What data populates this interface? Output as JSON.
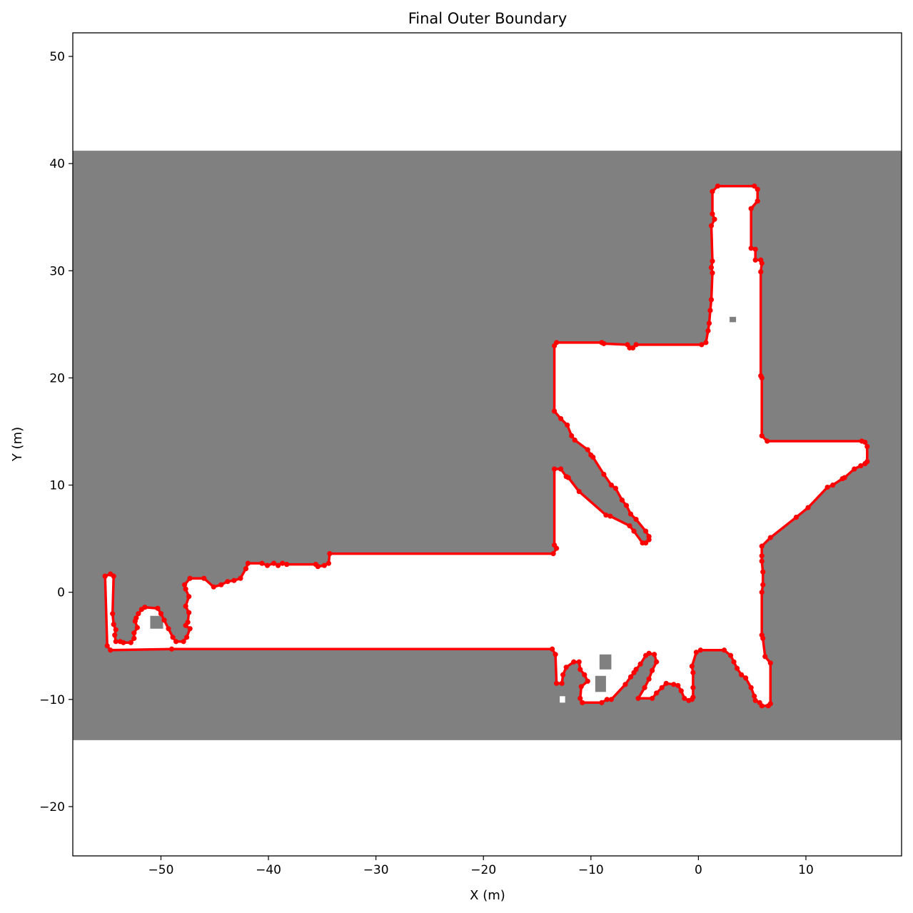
{
  "chart_data": {
    "type": "line",
    "title": "Final Outer Boundary",
    "xlabel": "X (m)",
    "ylabel": "Y (m)",
    "xlim": [
      -58.2,
      18.9
    ],
    "ylim": [
      -24.6,
      52.2
    ],
    "xticks": [
      -50,
      -40,
      -30,
      -20,
      -10,
      0,
      10
    ],
    "yticks": [
      -20,
      -10,
      0,
      10,
      20,
      30,
      40,
      50
    ],
    "xtick_labels": [
      "−50",
      "−40",
      "−30",
      "−20",
      "−10",
      "0",
      "10"
    ],
    "ytick_labels": [
      "−20",
      "−10",
      "0",
      "10",
      "20",
      "30",
      "40",
      "50"
    ],
    "grid": false,
    "background_map": {
      "unknown_color": "#808080",
      "free_color": "#ffffff",
      "unknown_band_y": [
        -13.8,
        41.2
      ],
      "obstacles": [
        {
          "x": [
            -51.0,
            -49.8
          ],
          "y": [
            -3.4,
            -2.2
          ]
        },
        {
          "x": [
            -9.2,
            -8.1
          ],
          "y": [
            -7.2,
            -5.8
          ]
        },
        {
          "x": [
            -9.6,
            -8.6
          ],
          "y": [
            -9.3,
            -7.8
          ]
        },
        {
          "x": [
            2.9,
            3.5
          ],
          "y": [
            25.2,
            25.7
          ]
        }
      ],
      "free_spots": [
        {
          "x": [
            -12.9,
            -12.4
          ],
          "y": [
            -10.3,
            -9.7
          ]
        }
      ]
    },
    "series": [
      {
        "color": "#ff0000",
        "points": [
          [
            -55.2,
            1.5
          ],
          [
            -55.0,
            -5.0
          ],
          [
            -54.7,
            -5.4
          ],
          [
            -49.0,
            -5.3
          ],
          [
            -13.6,
            -5.3
          ],
          [
            -13.3,
            -5.8
          ],
          [
            -13.2,
            -8.5
          ],
          [
            -12.7,
            -8.5
          ],
          [
            -12.6,
            -7.7
          ],
          [
            -12.3,
            -7.0
          ],
          [
            -11.6,
            -6.5
          ],
          [
            -11.1,
            -6.5
          ],
          [
            -11.0,
            -7.2
          ],
          [
            -10.6,
            -7.7
          ],
          [
            -10.3,
            -8.3
          ],
          [
            -10.9,
            -8.8
          ],
          [
            -11.0,
            -9.9
          ],
          [
            -10.8,
            -10.3
          ],
          [
            -9.0,
            -10.3
          ],
          [
            -8.5,
            -10.0
          ],
          [
            -8.1,
            -10.0
          ],
          [
            -6.8,
            -8.6
          ],
          [
            -6.3,
            -7.9
          ],
          [
            -6.0,
            -7.5
          ],
          [
            -5.8,
            -7.2
          ],
          [
            -5.4,
            -6.7
          ],
          [
            -4.9,
            -5.9
          ],
          [
            -4.6,
            -5.7
          ],
          [
            -4.1,
            -5.8
          ],
          [
            -3.9,
            -6.5
          ],
          [
            -4.3,
            -7.3
          ],
          [
            -4.6,
            -8.1
          ],
          [
            -5.0,
            -8.9
          ],
          [
            -5.6,
            -9.9
          ],
          [
            -4.3,
            -9.9
          ],
          [
            -3.9,
            -9.4
          ],
          [
            -3.4,
            -8.9
          ],
          [
            -3.0,
            -8.5
          ],
          [
            -2.3,
            -8.6
          ],
          [
            -1.9,
            -8.7
          ],
          [
            -1.6,
            -9.2
          ],
          [
            -1.3,
            -9.9
          ],
          [
            -0.9,
            -10.1
          ],
          [
            -0.6,
            -10.0
          ],
          [
            -0.5,
            -9.8
          ],
          [
            -0.5,
            -8.9
          ],
          [
            -0.5,
            -7.5
          ],
          [
            -0.6,
            -6.9
          ],
          [
            -0.2,
            -5.6
          ],
          [
            0.2,
            -5.4
          ],
          [
            2.4,
            -5.4
          ],
          [
            3.0,
            -5.9
          ],
          [
            3.3,
            -6.5
          ],
          [
            3.6,
            -7.1
          ],
          [
            4.0,
            -7.7
          ],
          [
            4.4,
            -8.0
          ],
          [
            4.9,
            -8.9
          ],
          [
            5.2,
            -9.7
          ],
          [
            5.3,
            -10.1
          ],
          [
            5.7,
            -10.3
          ],
          [
            5.9,
            -10.6
          ],
          [
            6.5,
            -10.6
          ],
          [
            6.7,
            -10.4
          ],
          [
            6.7,
            -6.6
          ],
          [
            6.2,
            -6.0
          ],
          [
            6.0,
            -4.3
          ],
          [
            5.9,
            -4.0
          ],
          [
            5.9,
            0.0
          ],
          [
            6.0,
            0.7
          ],
          [
            6.0,
            1.9
          ],
          [
            5.9,
            2.9
          ],
          [
            5.9,
            3.4
          ],
          [
            5.9,
            4.3
          ],
          [
            6.7,
            5.1
          ],
          [
            9.1,
            7.0
          ],
          [
            10.2,
            7.9
          ],
          [
            12.0,
            9.8
          ],
          [
            12.5,
            10.0
          ],
          [
            13.4,
            10.6
          ],
          [
            13.6,
            10.7
          ],
          [
            14.5,
            11.5
          ],
          [
            15.1,
            11.8
          ],
          [
            15.5,
            12.0
          ],
          [
            15.7,
            12.2
          ],
          [
            15.7,
            13.6
          ],
          [
            15.5,
            14.0
          ],
          [
            15.2,
            14.1
          ],
          [
            6.4,
            14.1
          ],
          [
            5.9,
            14.6
          ],
          [
            5.9,
            20.0
          ],
          [
            5.8,
            20.2
          ],
          [
            5.8,
            29.9
          ],
          [
            5.9,
            30.7
          ],
          [
            5.8,
            31.0
          ],
          [
            5.3,
            31.0
          ],
          [
            5.3,
            32.0
          ],
          [
            4.9,
            32.1
          ],
          [
            4.9,
            35.8
          ],
          [
            5.5,
            36.5
          ],
          [
            5.5,
            37.6
          ],
          [
            5.2,
            37.9
          ],
          [
            1.8,
            37.9
          ],
          [
            1.3,
            37.4
          ],
          [
            1.3,
            35.3
          ],
          [
            1.5,
            34.8
          ],
          [
            1.2,
            34.2
          ],
          [
            1.3,
            30.9
          ],
          [
            1.2,
            30.3
          ],
          [
            1.3,
            29.8
          ],
          [
            1.2,
            27.3
          ],
          [
            1.1,
            26.3
          ],
          [
            1.0,
            25.1
          ],
          [
            0.9,
            24.4
          ],
          [
            0.7,
            23.3
          ],
          [
            0.3,
            23.1
          ],
          [
            -5.8,
            23.1
          ],
          [
            -6.1,
            22.8
          ],
          [
            -6.4,
            22.8
          ],
          [
            -6.6,
            23.1
          ],
          [
            -8.8,
            23.2
          ],
          [
            -9.0,
            23.3
          ],
          [
            -13.2,
            23.3
          ],
          [
            -13.4,
            23.0
          ],
          [
            -13.4,
            16.9
          ],
          [
            -12.8,
            16.2
          ],
          [
            -12.2,
            15.6
          ],
          [
            -11.8,
            14.6
          ],
          [
            -11.5,
            14.2
          ],
          [
            -10.3,
            13.3
          ],
          [
            -10.0,
            12.8
          ],
          [
            -9.8,
            12.6
          ],
          [
            -8.8,
            11.0
          ],
          [
            -8.1,
            10.0
          ],
          [
            -7.7,
            9.7
          ],
          [
            -7.1,
            8.6
          ],
          [
            -6.7,
            8.1
          ],
          [
            -6.3,
            7.3
          ],
          [
            -5.8,
            6.8
          ],
          [
            -4.9,
            5.7
          ],
          [
            -4.6,
            5.2
          ],
          [
            -4.6,
            4.9
          ],
          [
            -4.9,
            4.6
          ],
          [
            -5.2,
            4.6
          ],
          [
            -6.0,
            5.7
          ],
          [
            -6.4,
            6.2
          ],
          [
            -8.2,
            7.1
          ],
          [
            -8.6,
            7.2
          ],
          [
            -11.1,
            9.4
          ],
          [
            -12.1,
            10.7
          ],
          [
            -12.3,
            10.8
          ],
          [
            -12.8,
            11.5
          ],
          [
            -13.4,
            11.5
          ],
          [
            -13.4,
            4.4
          ],
          [
            -13.2,
            4.1
          ],
          [
            -13.5,
            3.6
          ],
          [
            -34.3,
            3.6
          ],
          [
            -34.4,
            2.7
          ],
          [
            -34.8,
            2.5
          ],
          [
            -35.4,
            2.4
          ],
          [
            -35.6,
            2.6
          ],
          [
            -38.3,
            2.6
          ],
          [
            -38.7,
            2.7
          ],
          [
            -39.1,
            2.5
          ],
          [
            -39.5,
            2.7
          ],
          [
            -40.1,
            2.5
          ],
          [
            -40.6,
            2.7
          ],
          [
            -41.9,
            2.7
          ],
          [
            -42.1,
            2.2
          ],
          [
            -42.6,
            1.3
          ],
          [
            -43.2,
            1.1
          ],
          [
            -43.8,
            1.0
          ],
          [
            -44.4,
            0.7
          ],
          [
            -45.1,
            0.5
          ],
          [
            -46.0,
            1.3
          ],
          [
            -47.3,
            1.3
          ],
          [
            -47.8,
            0.7
          ],
          [
            -47.7,
            0.3
          ],
          [
            -47.4,
            -0.4
          ],
          [
            -47.7,
            -1.3
          ],
          [
            -47.4,
            -1.9
          ],
          [
            -47.5,
            -2.8
          ],
          [
            -47.7,
            -3.1
          ],
          [
            -47.3,
            -3.4
          ],
          [
            -47.6,
            -4.2
          ],
          [
            -47.9,
            -4.6
          ],
          [
            -48.6,
            -4.6
          ],
          [
            -48.9,
            -4.2
          ],
          [
            -49.3,
            -3.4
          ],
          [
            -49.7,
            -2.6
          ],
          [
            -50.0,
            -2.0
          ],
          [
            -50.3,
            -1.5
          ],
          [
            -51.5,
            -1.4
          ],
          [
            -51.8,
            -1.6
          ],
          [
            -52.1,
            -2.0
          ],
          [
            -52.3,
            -2.4
          ],
          [
            -52.4,
            -2.7
          ],
          [
            -52.2,
            -3.3
          ],
          [
            -52.5,
            -3.8
          ],
          [
            -52.5,
            -4.3
          ],
          [
            -52.8,
            -4.7
          ],
          [
            -53.5,
            -4.7
          ],
          [
            -53.8,
            -4.6
          ],
          [
            -54.2,
            -4.6
          ],
          [
            -54.3,
            -4.0
          ],
          [
            -54.2,
            -3.5
          ],
          [
            -54.4,
            -3.0
          ],
          [
            -54.5,
            -2.0
          ],
          [
            -54.4,
            1.5
          ],
          [
            -54.7,
            1.7
          ],
          [
            -55.2,
            1.5
          ]
        ]
      }
    ]
  }
}
